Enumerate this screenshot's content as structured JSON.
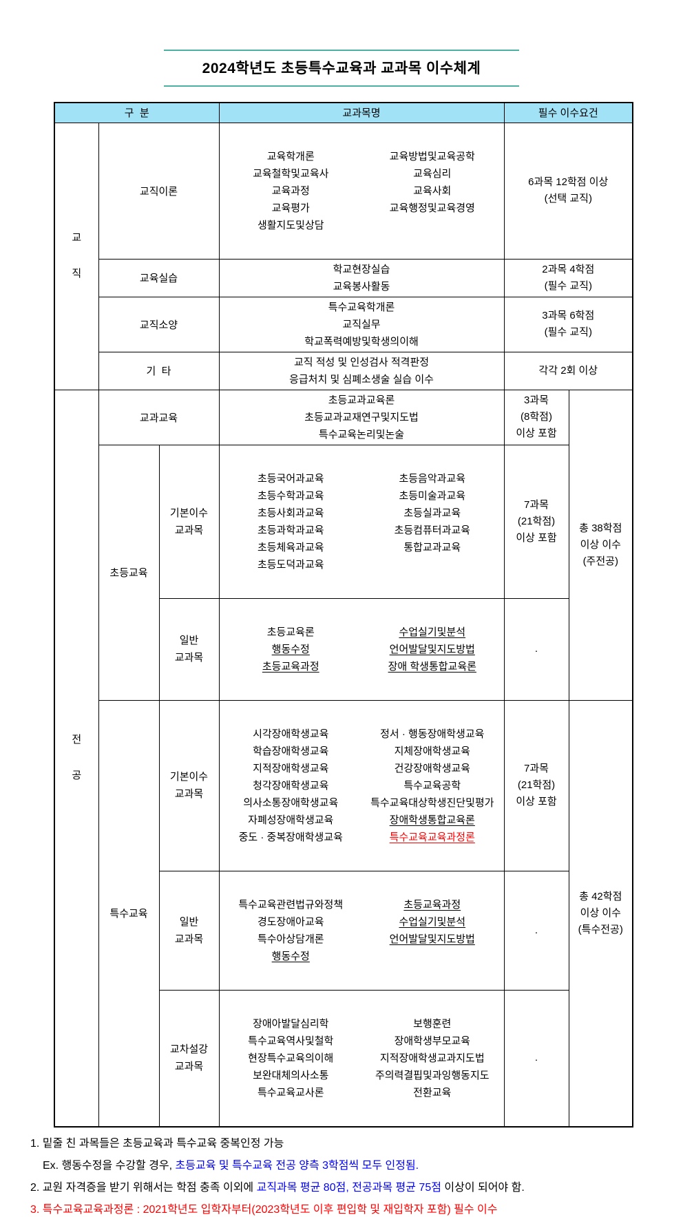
{
  "title": "2024학년도 초등특수교육과 교과목 이수체계",
  "colors": {
    "title_line": "#4BAFA3",
    "header_bg": "#A2E2F7",
    "note_blue": "#0000FF",
    "note_red": "#FF0000"
  },
  "table": {
    "headers": {
      "category": "구  분",
      "course": "교과목명",
      "requirement": "필수 이수요건"
    },
    "gyojik": {
      "label_chars": [
        "교",
        "직"
      ],
      "iron": {
        "label": "교직이론",
        "left": [
          "교육학개론",
          "교육철학및교육사",
          "교육과정",
          "교육평가",
          "생활지도및상담"
        ],
        "right": [
          "교육방법및교육공학",
          "교육심리",
          "교육사회",
          "교육행정및교육경영"
        ],
        "req": [
          "6과목 12학점 이상",
          "(선택 교직)"
        ]
      },
      "silseup": {
        "label": "교육실습",
        "center": [
          "학교현장실습",
          "교육봉사활동"
        ],
        "req": [
          "2과목 4학점",
          "(필수 교직)"
        ]
      },
      "soyang": {
        "label": "교직소양",
        "center": [
          "특수교육학개론",
          "교직실무",
          "학교폭력예방및학생의이해"
        ],
        "req": [
          "3과목 6학점",
          "(필수 교직)"
        ]
      },
      "gita": {
        "label": "기  타",
        "center": [
          "교직 적성 및 인성검사 적격판정",
          "응급처치 및 심폐소생술 실습 이수"
        ],
        "req": [
          "각각 2회 이상"
        ]
      }
    },
    "jeongong": {
      "label_chars": [
        "전",
        "공"
      ],
      "gyogwa": {
        "label": "교과교육",
        "center": [
          "초등교과교육론",
          "초등교과교재연구및지도법",
          "특수교육논리및논술"
        ],
        "req": [
          "3과목",
          "(8학점)",
          "이상 포함"
        ]
      },
      "chodeung": {
        "label": "초등교육",
        "gibon": {
          "label": [
            "기본이수",
            "교과목"
          ],
          "left": [
            "초등국어과교육",
            "초등수학과교육",
            "초등사회과교육",
            "초등과학과교육",
            "초등체육과교육",
            "초등도덕과교육"
          ],
          "right": [
            "초등음악과교육",
            "초등미술과교육",
            "초등실과교육",
            "초등컴퓨터과교육",
            "통합교과교육"
          ],
          "req": [
            "7과목",
            "(21학점)",
            "이상 포함"
          ]
        },
        "ilban": {
          "label": [
            "일반",
            "교과목"
          ],
          "left": [
            {
              "t": "초등교육론"
            },
            {
              "t": "행동수정",
              "u": true
            },
            {
              "t": "초등교육과정",
              "u": true
            }
          ],
          "right": [
            {
              "t": "수업실기및분석",
              "u": true
            },
            {
              "t": "언어발달및지도방법",
              "u": true
            },
            {
              "t": "장애 학생통합교육론",
              "u": true
            }
          ],
          "req": [
            "."
          ]
        },
        "total": [
          "총 38학점",
          "이상 이수",
          "(주전공)"
        ]
      },
      "teuksu": {
        "label": "특수교육",
        "gibon": {
          "label": [
            "기본이수",
            "교과목"
          ],
          "left": [
            "시각장애학생교육",
            "학습장애학생교육",
            "지적장애학생교육",
            "청각장애학생교육",
            "의사소통장애학생교육",
            "자폐성장애학생교육",
            "중도 · 중복장애학생교육"
          ],
          "right": [
            "정서 · 행동장애학생교육",
            "지체장애학생교육",
            "건강장애학생교육",
            "특수교육공학",
            "특수교육대상학생진단및평가",
            {
              "t": "장애학생통합교육론",
              "u": true
            },
            {
              "t": "특수교육교육과정론",
              "u": true,
              "red": true
            }
          ],
          "req": [
            "7과목",
            "(21학점)",
            "이상 포함"
          ]
        },
        "ilban": {
          "label": [
            "일반",
            "교과목"
          ],
          "left": [
            "특수교육관련법규와정책",
            "경도장애아교육",
            "특수아상담개론",
            {
              "t": "행동수정",
              "u": true
            }
          ],
          "right": [
            {
              "t": "초등교육과정",
              "u": true
            },
            {
              "t": "수업실기및분석",
              "u": true
            },
            {
              "t": "언어발달및지도방법",
              "u": true
            }
          ],
          "req": [
            "."
          ]
        },
        "gyocha": {
          "label": [
            "교차설강",
            "교과목"
          ],
          "left": [
            "장애아발달심리학",
            "특수교육역사및철학",
            "현장특수교육의이해",
            "보완대체의사소통",
            "특수교육교사론"
          ],
          "right": [
            "보행훈련",
            "장애학생부모교육",
            "지적장애학생교과지도법",
            "주의력결핍및과잉행동지도",
            "전환교육"
          ],
          "req": [
            "."
          ]
        },
        "total": [
          "총 42학점",
          "이상 이수",
          "(특수전공)"
        ]
      }
    }
  },
  "notes": {
    "n1_l1": "1. 밑줄 친 과목들은 초등교육과 특수교육 중복인정 가능",
    "n1_l2_black": "Ex. 행동수정을 수강할 경우, ",
    "n1_l2_blue": "초등교육 및 특수교육 전공 양측 3학점씩 모두 인정됨.",
    "n2_black1": "2. 교원 자격증을 받기 위해서는 학점 충족 이외에 ",
    "n2_blue": "교직과목 평균 80점, 전공과목 평균 75점 ",
    "n2_black2": "이상이 되어야 함.",
    "n3_red": "3. 특수교육교육과정론 : 2021학년도 입학자부터(2023학년도 이후 편입학 및 재입학자 포함) 필수 이수"
  }
}
